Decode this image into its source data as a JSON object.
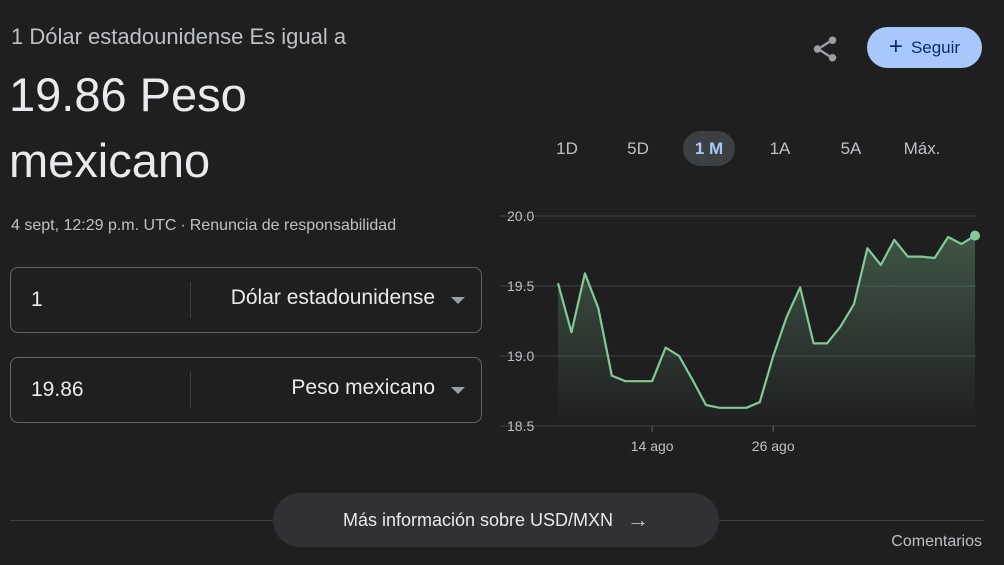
{
  "header": {
    "subtitle": "1 Dólar estadounidense Es igual a",
    "value_line": "19.86 Peso mexicano",
    "timestamp": "4 sept, 12:29 p.m. UTC",
    "separator": "·",
    "disclaimer": "Renuncia de responsabilidad"
  },
  "actions": {
    "share_icon": "share-icon",
    "follow_label": "Seguir",
    "follow_icon": "+"
  },
  "converter": {
    "from": {
      "amount": "1",
      "unit": "Dólar estadounidense"
    },
    "to": {
      "amount": "19.86",
      "unit": "Peso mexicano"
    }
  },
  "ranges": {
    "tabs": [
      "1D",
      "5D",
      "1 M",
      "1A",
      "5A",
      "Máx."
    ],
    "selected": "1 M"
  },
  "chart_data": {
    "type": "area",
    "y_ticks": [
      "20.0",
      "19.5",
      "19.0",
      "18.5"
    ],
    "ylim": [
      18.5,
      20.0
    ],
    "x_ticks": [
      {
        "label": "14 ago",
        "index": 7
      },
      {
        "label": "26 ago",
        "index": 16
      }
    ],
    "values": [
      19.52,
      19.17,
      19.59,
      19.34,
      18.86,
      18.82,
      18.82,
      18.82,
      19.06,
      19.0,
      18.83,
      18.65,
      18.63,
      18.63,
      18.63,
      18.67,
      19.0,
      19.28,
      19.49,
      19.09,
      19.09,
      19.21,
      19.37,
      19.77,
      19.65,
      19.83,
      19.71,
      19.71,
      19.7,
      19.85,
      19.8,
      19.86
    ],
    "line_color": "#81c995",
    "grid": true
  },
  "footer": {
    "more_label": "Más información sobre USD/MXN",
    "arrow": "→",
    "feedback": "Comentarios"
  }
}
